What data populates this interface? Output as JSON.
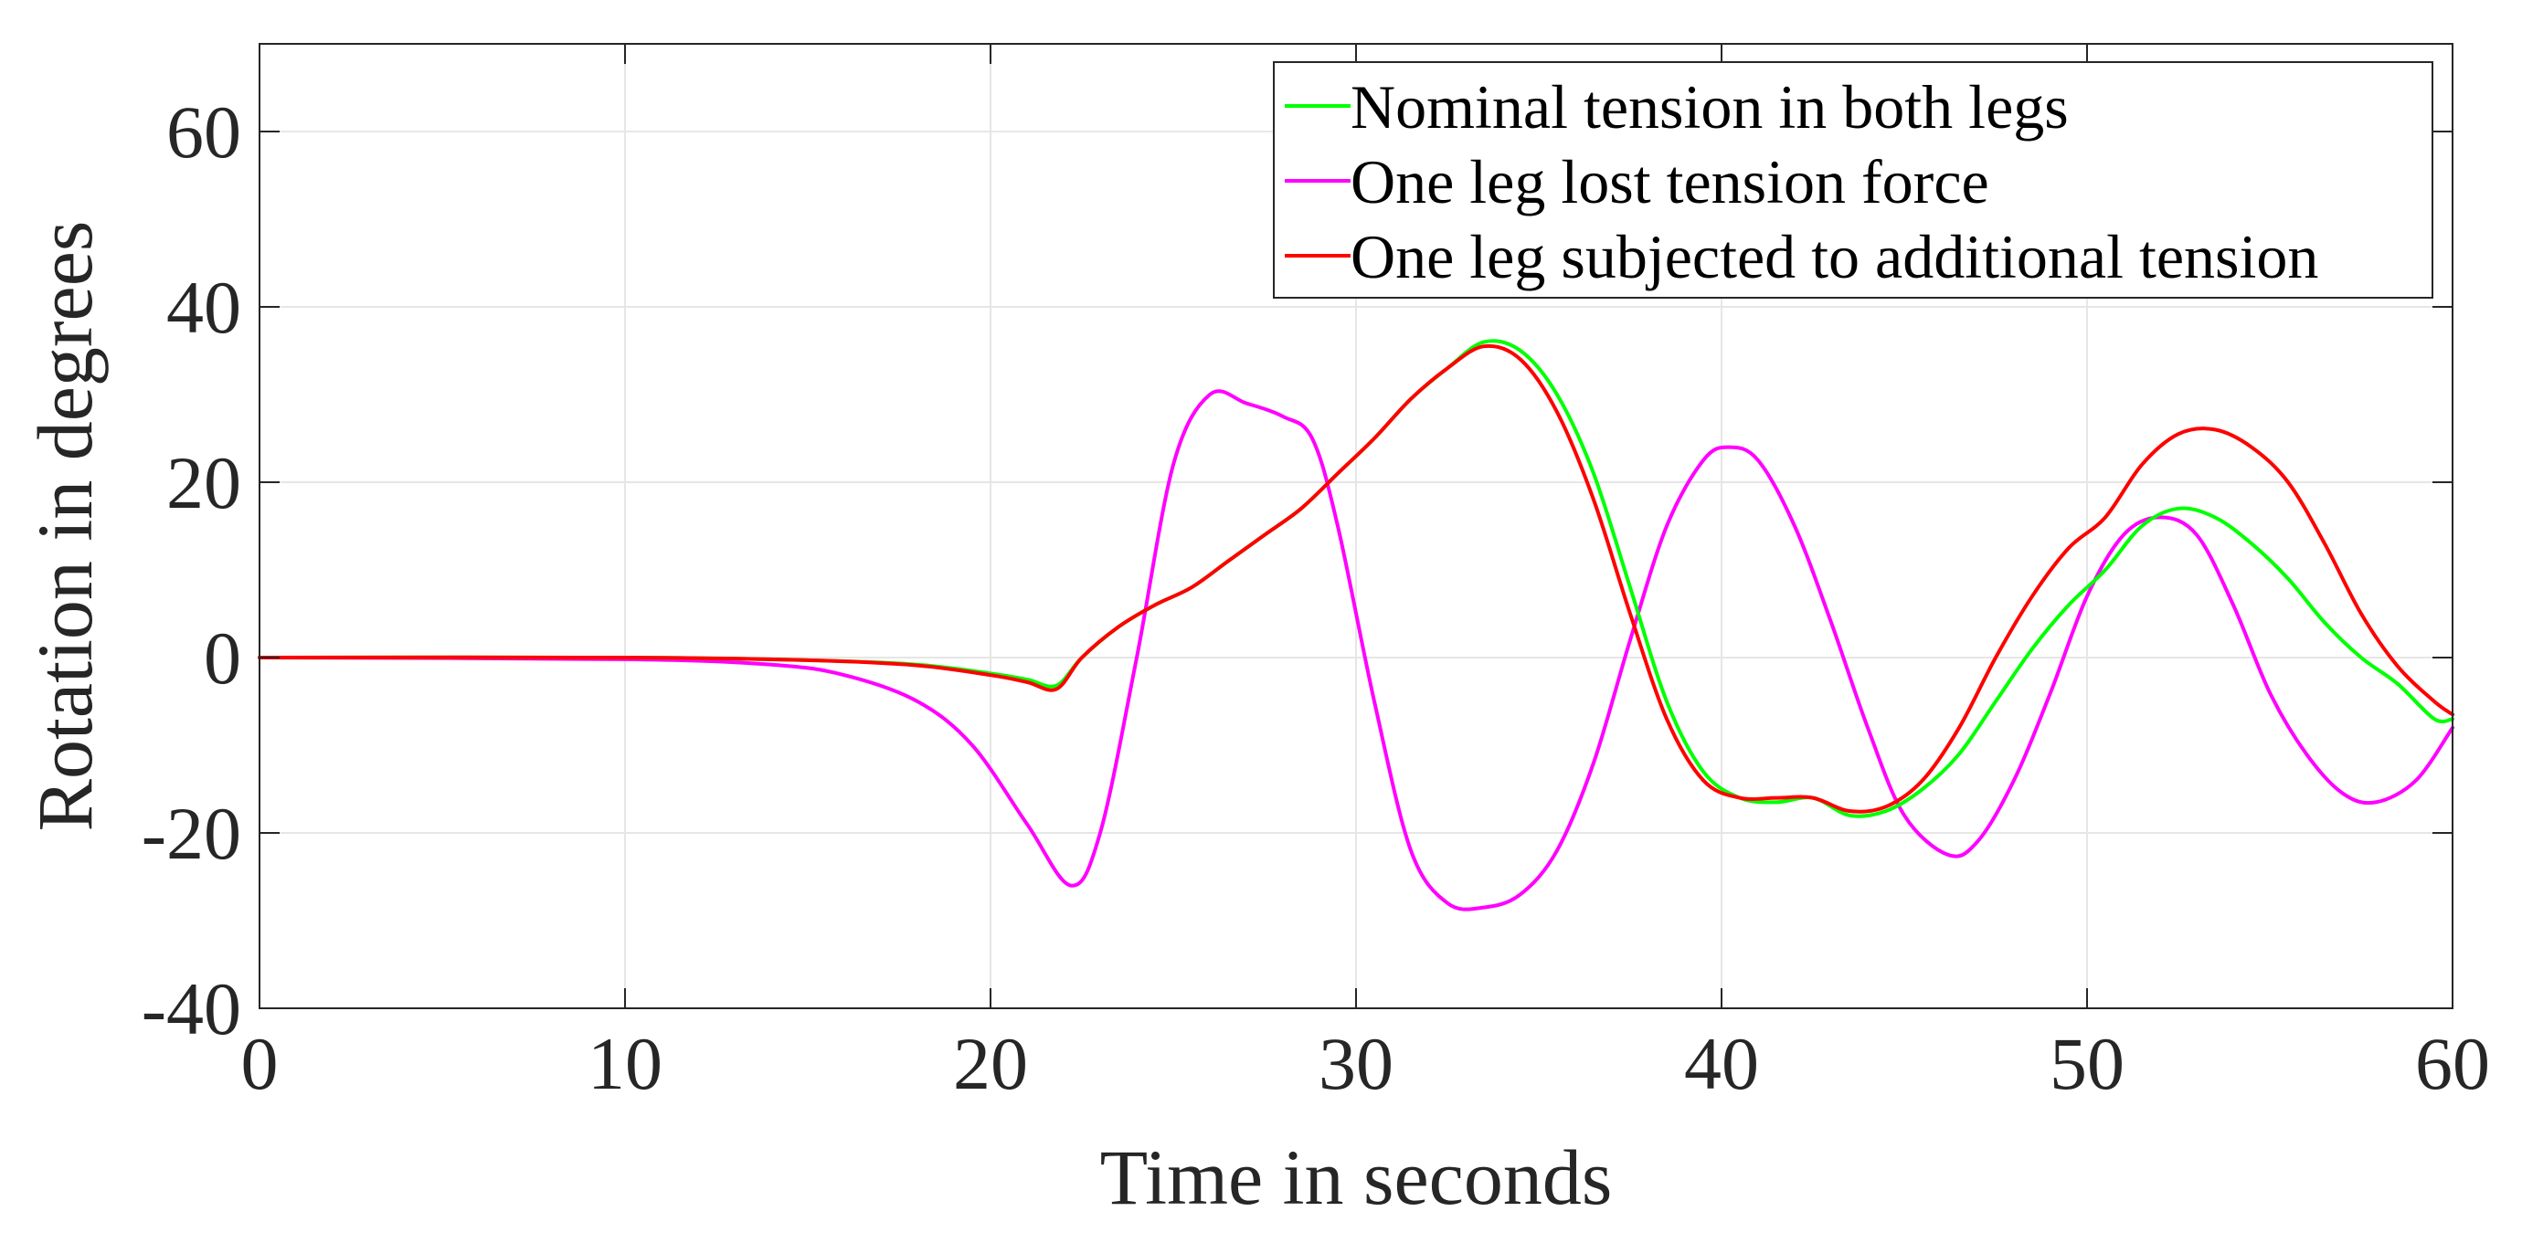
{
  "chart_data": {
    "type": "line",
    "title": "",
    "xlabel": "Time in seconds",
    "ylabel": "Rotation in degrees",
    "xlim": [
      0,
      60
    ],
    "ylim": [
      -40,
      70
    ],
    "xticks": [
      0,
      10,
      20,
      30,
      40,
      50,
      60
    ],
    "yticks": [
      -40,
      -20,
      0,
      20,
      40,
      60
    ],
    "grid": true,
    "legend_position": "top-right",
    "series": [
      {
        "name": "Nominal tension in both legs",
        "color": "#00ff00",
        "x": [
          0,
          10,
          15,
          18,
          20,
          21,
          21.8,
          22.5,
          23.5,
          24.5,
          25.5,
          26.5,
          27.5,
          28.5,
          29.5,
          30.5,
          31.5,
          32.5,
          33.5,
          34.5,
          35.5,
          36.5,
          37.5,
          38.5,
          39.5,
          40.5,
          41.5,
          42.5,
          43.5,
          44.5,
          45.5,
          46.5,
          47.5,
          48.5,
          49.5,
          50.5,
          51.5,
          52.5,
          53.5,
          54.5,
          55.5,
          56.5,
          57.5,
          58.5,
          59.5,
          60
        ],
        "values": [
          0,
          0,
          -0.3,
          -0.8,
          -1.8,
          -2.5,
          -3.2,
          0,
          3.5,
          6,
          8,
          11,
          14,
          17,
          21,
          25,
          29.5,
          33,
          36,
          35,
          30,
          21,
          8,
          -5,
          -13,
          -16,
          -16.5,
          -16,
          -18,
          -17.5,
          -15,
          -11,
          -5,
          1,
          6,
          10,
          15,
          17,
          16,
          13,
          9,
          4,
          0,
          -3,
          -7,
          -7
        ]
      },
      {
        "name": "One leg lost tension force",
        "color": "#ff00ff",
        "x": [
          0,
          10,
          14,
          16,
          18,
          19.5,
          21,
          22.2,
          23,
          24,
          25,
          26,
          27,
          28,
          28.8,
          29.5,
          30.5,
          31.5,
          32.5,
          33.5,
          34.5,
          35.5,
          36.5,
          37.5,
          38.5,
          39.5,
          40.2,
          41,
          42,
          43,
          44,
          45,
          46.2,
          47,
          48,
          49,
          50,
          51,
          52,
          53,
          54,
          55,
          56,
          57,
          57.9,
          59,
          60
        ],
        "values": [
          0,
          -0.2,
          -0.8,
          -2,
          -5,
          -10,
          -19,
          -26,
          -20,
          0,
          22,
          30,
          29,
          27.5,
          25,
          15,
          -5,
          -22,
          -28,
          -28.5,
          -27,
          -22,
          -12,
          2,
          15,
          22.5,
          24,
          22.5,
          15,
          4,
          -8,
          -18,
          -22.5,
          -21,
          -14,
          -4,
          7,
          14,
          16,
          14,
          6,
          -4,
          -11,
          -15.5,
          -16.5,
          -14,
          -8
        ]
      },
      {
        "name": "One leg subjected to additional tension",
        "color": "#ff0000",
        "x": [
          0,
          10,
          15,
          18,
          20,
          21,
          21.8,
          22.5,
          23.5,
          24.5,
          25.5,
          26.5,
          27.5,
          28.5,
          29.5,
          30.5,
          31.5,
          32.5,
          33.5,
          34.5,
          35.5,
          36.5,
          37.5,
          38.5,
          39.5,
          40.5,
          41.5,
          42.5,
          43.5,
          44.5,
          45.5,
          46.5,
          47.5,
          48.5,
          49.5,
          50.5,
          51.5,
          52.5,
          53.5,
          54.5,
          55.5,
          56.5,
          57.5,
          58.5,
          59.5,
          60
        ],
        "values": [
          0,
          0,
          -0.3,
          -0.9,
          -2,
          -2.8,
          -3.6,
          0,
          3.5,
          6,
          8,
          11,
          14,
          17,
          21,
          25,
          29.5,
          33,
          35.5,
          34,
          28,
          18,
          5,
          -7,
          -14,
          -16,
          -16,
          -16,
          -17.5,
          -17,
          -14,
          -8,
          0,
          7,
          12.5,
          16,
          22,
          25.5,
          26,
          24,
          20,
          13,
          5,
          -1,
          -5,
          -6.5
        ]
      }
    ]
  }
}
